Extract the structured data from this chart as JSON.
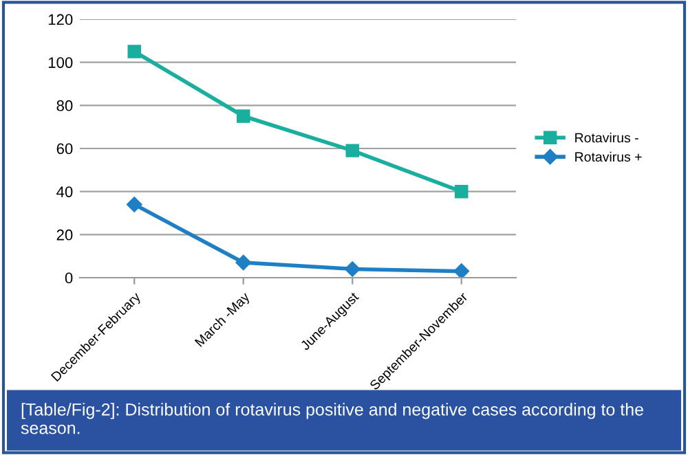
{
  "chart_data": {
    "type": "line",
    "categories": [
      "December-February",
      "March -May",
      "June-August",
      "September-November"
    ],
    "series": [
      {
        "name": "Rotavirus -",
        "color": "#1aae9f",
        "marker": "square",
        "values": [
          105,
          75,
          59,
          40
        ]
      },
      {
        "name": "Rotavirus +",
        "color": "#1f7fc4",
        "marker": "diamond",
        "values": [
          34,
          7,
          4,
          3
        ]
      }
    ],
    "ylim": [
      0,
      120
    ],
    "yticks": [
      0,
      20,
      40,
      60,
      80,
      100,
      120
    ],
    "grid": "y",
    "legend": "right",
    "line_style": "solid",
    "annotations": [
      "[Table/Fig-2]: Distribution of rotavirus positive and negative cases according to the season."
    ]
  }
}
